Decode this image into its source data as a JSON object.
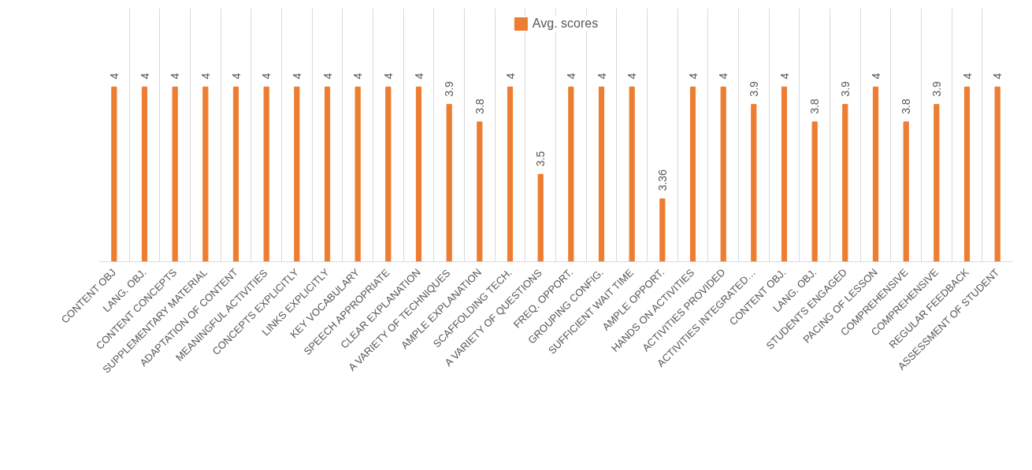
{
  "chart_data": {
    "type": "bar",
    "categories": [
      "CONTENT OBJ",
      "LANG. OBJ.",
      "CONTENT CONCEPTS",
      "SUPPLEMENTARY MATERIAL",
      "ADAPTATION OF CONTENT",
      "MEANINGFUL ACTIVITIES",
      "CONCEPTS EXPLICITLY",
      "LINKS EXPLICITLY",
      "KEY VOCABULARY",
      "SPEECH APPROPRIATE",
      "CLEAR EXPLANATION",
      "A VARIETY OF TECHNIQUES",
      "AMPLE EXPLANATION",
      "SCAFFOLDING TECH.",
      "A VARIETY OF QUESTIONS",
      "FREQ. OPPORT.",
      "GROUPING CONFIG.",
      "SUFFICIENT WAIT TIME",
      "AMPLE OPPORT.",
      "HANDS ON ACTIVITIES",
      "ACTIVITIES PROVIDED",
      "ACTIVITIES INTEGRATED…",
      "CONTENT OBJ.",
      "LANG. OBJ.",
      "STUDENTS ENGAGED",
      "PACING OF LESSON",
      "COMPREHENSIVE",
      "COMPREHENSIVE",
      "REGULAR FEEDBACK",
      "ASSESSMENT OF STUDENT"
    ],
    "series": [
      {
        "name": "Avg. scores",
        "color": "#ed7d31",
        "values": [
          4,
          4,
          4,
          4,
          4,
          4,
          4,
          4,
          4,
          4,
          4,
          3.9,
          3.8,
          4,
          3.5,
          4,
          4,
          4,
          3.36,
          4,
          4,
          3.9,
          4,
          3.8,
          3.9,
          4,
          3.8,
          3.9,
          4,
          4
        ]
      }
    ],
    "ylim": [
      3,
      4.45
    ],
    "tick_labels": "x",
    "data_labels": true,
    "grid": "x",
    "legend": "top"
  }
}
